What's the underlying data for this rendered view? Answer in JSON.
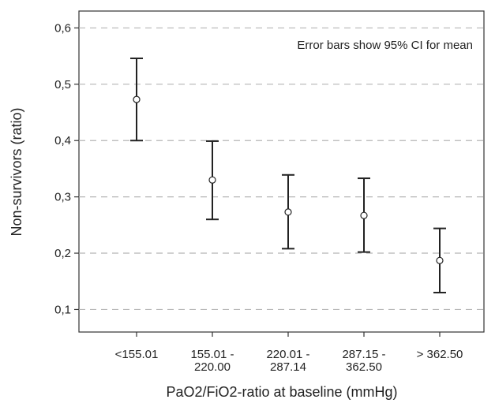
{
  "chart_data": {
    "type": "errorbar",
    "title": "",
    "xlabel": "PaO2/FiO2-ratio at baseline (mmHg)",
    "ylabel": "Non-survivors (ratio)",
    "annotation": "Error bars show 95% CI for mean",
    "ylim": [
      0.06,
      0.63
    ],
    "yticks": [
      0.1,
      0.2,
      0.3,
      0.4,
      0.5,
      0.6
    ],
    "ytick_labels": [
      "0,1",
      "0,2",
      "0,3",
      "0,4",
      "0,5",
      "0,6"
    ],
    "grid": "horizontal-dashed",
    "categories": [
      [
        "<155.01"
      ],
      [
        "155.01 -",
        "220.00"
      ],
      [
        "220.01 -",
        "287.14"
      ],
      [
        "287.15 -",
        "362.50"
      ],
      [
        "> 362.50"
      ]
    ],
    "means": [
      0.473,
      0.33,
      0.273,
      0.267,
      0.187
    ],
    "ci_lower": [
      0.4,
      0.26,
      0.208,
      0.202,
      0.13
    ],
    "ci_upper": [
      0.546,
      0.399,
      0.339,
      0.333,
      0.244
    ]
  }
}
